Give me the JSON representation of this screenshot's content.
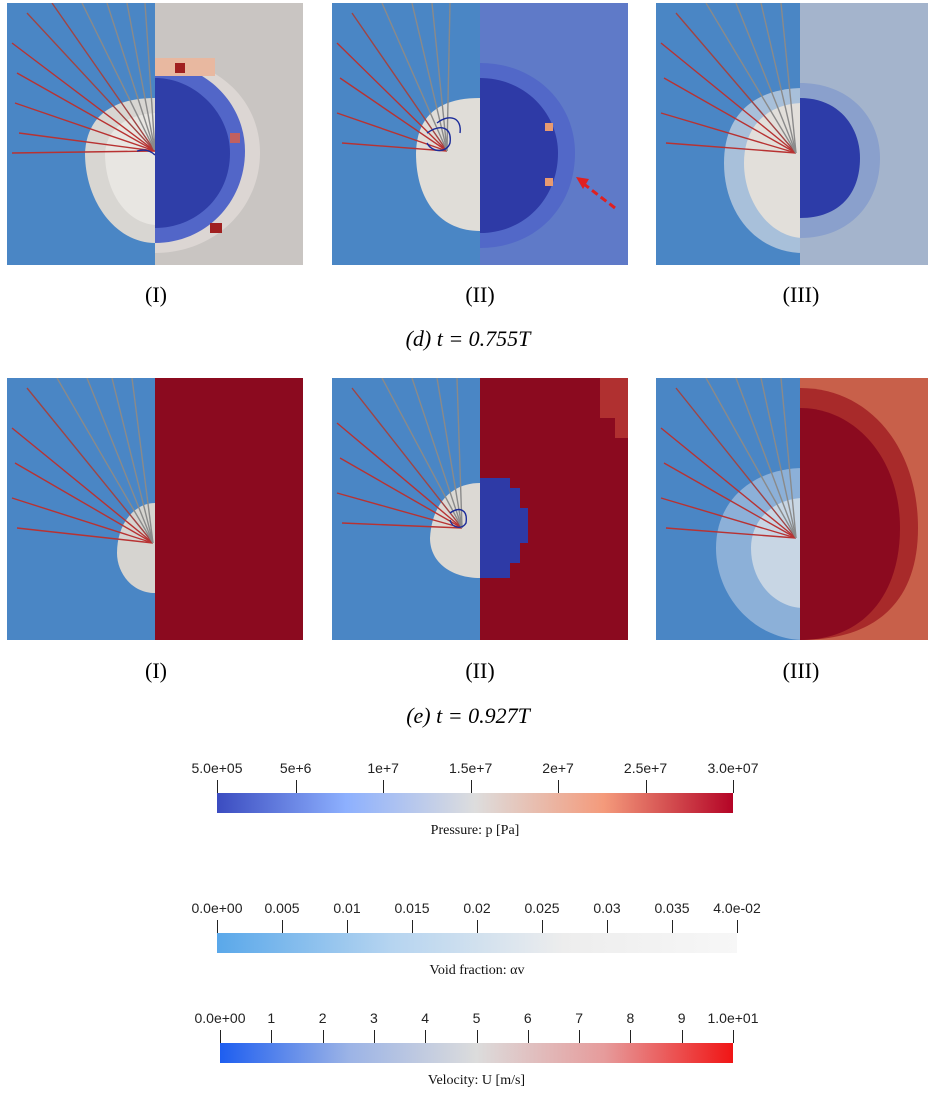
{
  "rows": [
    {
      "caption": "(d) t = 0.755T",
      "labels": [
        "(I)",
        "(II)",
        "(III)"
      ]
    },
    {
      "caption": "(e) t = 0.927T",
      "labels": [
        "(I)",
        "(II)",
        "(III)"
      ]
    }
  ],
  "colorbars": [
    {
      "title": "Pressure: p [Pa]",
      "ticks": [
        "5.0e+05",
        "5e+6",
        "1e+7",
        "1.5e+7",
        "2e+7",
        "2.5e+7",
        "3.0e+07"
      ],
      "tick_values": [
        500000,
        5000000,
        10000000,
        15000000,
        20000000,
        25000000,
        30000000
      ],
      "range": [
        500000,
        30000000
      ],
      "colors": [
        "#3b4cc0",
        "#8db0fe",
        "#dddddd",
        "#f49a7b",
        "#b40426"
      ]
    },
    {
      "title": "Void fraction: αv",
      "ticks": [
        "0.0e+00",
        "0.005",
        "0.01",
        "0.015",
        "0.02",
        "0.025",
        "0.03",
        "0.035",
        "4.0e-02"
      ],
      "tick_values": [
        0,
        0.005,
        0.01,
        0.015,
        0.02,
        0.025,
        0.03,
        0.035,
        0.04
      ],
      "range": [
        0,
        0.04
      ],
      "colors": [
        "#5aa8ea",
        "#b5d4f0",
        "#ededed",
        "#f7f7f7"
      ]
    },
    {
      "title": "Velocity: U [m/s]",
      "ticks": [
        "0.0e+00",
        "1",
        "2",
        "3",
        "4",
        "5",
        "6",
        "7",
        "8",
        "9",
        "1.0e+01"
      ],
      "tick_values": [
        0,
        1,
        2,
        3,
        4,
        5,
        6,
        7,
        8,
        9,
        10
      ],
      "range": [
        0,
        10
      ],
      "colors": [
        "#1e5ef0",
        "#9bb3e6",
        "#dcdcdc",
        "#e69b9b",
        "#f01515"
      ]
    }
  ],
  "colors": {
    "background_blue": "#4a86c5",
    "pressure_low": "#3b4cc0",
    "pressure_high": "#8b0a1f",
    "void_light": "#e6e2dc",
    "streamline_red": "#b83232",
    "streamline_gray": "#8a8a8a",
    "arrow_red": "#e02020"
  }
}
